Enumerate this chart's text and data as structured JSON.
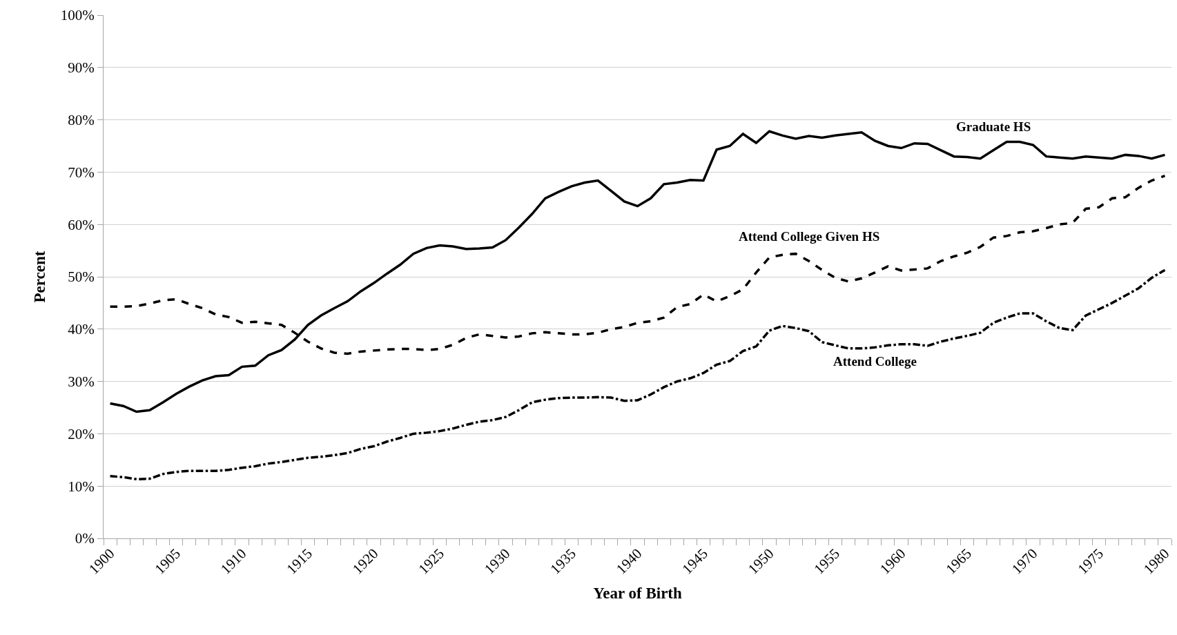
{
  "chart_data": {
    "type": "line",
    "xlabel": "Year of Birth",
    "ylabel": "Percent",
    "categories": [
      "1900",
      null,
      null,
      null,
      null,
      "1905",
      null,
      null,
      null,
      null,
      "1910",
      null,
      null,
      null,
      null,
      "1915",
      null,
      null,
      null,
      null,
      "1920",
      null,
      null,
      null,
      null,
      "1925",
      null,
      null,
      null,
      null,
      "1930",
      null,
      null,
      null,
      null,
      "1935",
      null,
      null,
      null,
      null,
      "1940",
      null,
      null,
      null,
      null,
      "1945",
      null,
      null,
      null,
      null,
      "1950",
      null,
      null,
      null,
      null,
      "1955",
      null,
      null,
      null,
      null,
      "1960",
      null,
      null,
      null,
      null,
      "1965",
      null,
      null,
      null,
      null,
      "1970",
      null,
      null,
      null,
      null,
      "1975",
      null,
      null,
      null,
      null,
      "1980"
    ],
    "series": [
      {
        "name": "Graduate HS",
        "color": "#000000",
        "line_style": "solid",
        "values": [
          25.8,
          25.3,
          24.2,
          24.5,
          26,
          27.6,
          29,
          30.2,
          31,
          31.2,
          32.8,
          33,
          35,
          36,
          38,
          40.8,
          42.6,
          44,
          45.3,
          47.2,
          48.8,
          50.6,
          52.3,
          54.4,
          55.5,
          56,
          55.8,
          55.3,
          55.4,
          55.6,
          57,
          59.4,
          62,
          65,
          66.2,
          67.3,
          68,
          68.4,
          66.4,
          64.4,
          63.5,
          65,
          67.7,
          68,
          68.5,
          68.4,
          74.3,
          75,
          77.3,
          75.6,
          77.8,
          77,
          76.4,
          76.9,
          76.6,
          77,
          77.3,
          77.6,
          76,
          75,
          74.6,
          75.5,
          75.4,
          74.2,
          73,
          72.9,
          72.6,
          74.2,
          75.8,
          75.8,
          75.2,
          73,
          72.8,
          72.6,
          73,
          72.8,
          72.6,
          73.3,
          73.1,
          72.6,
          73.3
        ]
      },
      {
        "name": "Attend College Given HS",
        "color": "#000000",
        "line_style": "dashed",
        "values": [
          44.3,
          44.3,
          44.4,
          44.9,
          45.5,
          45.7,
          44.8,
          44,
          42.8,
          42.3,
          41.2,
          41.4,
          41.1,
          40.8,
          39.3,
          37.6,
          36.3,
          35.5,
          35.3,
          35.7,
          35.9,
          36.1,
          36.2,
          36.2,
          36,
          36.2,
          37,
          38.3,
          39,
          38.7,
          38.4,
          38.6,
          39.2,
          39.4,
          39.2,
          39,
          39,
          39.3,
          40,
          40.4,
          41.2,
          41.5,
          42.2,
          44.2,
          44.8,
          46.6,
          45.3,
          46.3,
          47.6,
          50.8,
          53.7,
          54.2,
          54.4,
          53,
          51.3,
          49.8,
          49.1,
          49.7,
          50.8,
          52,
          51.2,
          51.4,
          51.6,
          53,
          53.9,
          54.6,
          55.7,
          57.5,
          57.8,
          58.5,
          58.7,
          59.3,
          60,
          60.3,
          63,
          63.3,
          65,
          65.2,
          67,
          68.4,
          69.3
        ]
      },
      {
        "name": "Attend College",
        "color": "#000000",
        "line_style": "dashdot",
        "values": [
          11.9,
          11.7,
          11.3,
          11.4,
          12.3,
          12.7,
          12.9,
          12.9,
          12.9,
          13.1,
          13.5,
          13.8,
          14.3,
          14.6,
          15,
          15.4,
          15.6,
          15.9,
          16.3,
          17.1,
          17.6,
          18.5,
          19.2,
          20,
          20.2,
          20.5,
          21,
          21.7,
          22.3,
          22.6,
          23.2,
          24.5,
          26,
          26.5,
          26.8,
          26.9,
          26.9,
          27,
          26.9,
          26.3,
          26.4,
          27.5,
          28.9,
          30,
          30.6,
          31.6,
          33.2,
          33.9,
          35.8,
          36.7,
          39.7,
          40.6,
          40.2,
          39.6,
          37.5,
          36.9,
          36.3,
          36.3,
          36.5,
          36.9,
          37.1,
          37.1,
          36.8,
          37.6,
          38.2,
          38.7,
          39.3,
          41.2,
          42.2,
          43,
          43,
          41.5,
          40.2,
          39.8,
          42.6,
          43.8,
          45,
          46.4,
          47.8,
          49.8,
          51.3
        ]
      }
    ],
    "ylim": [
      0,
      100
    ],
    "yticks": [
      {
        "value": 0,
        "label": "0%"
      },
      {
        "value": 10,
        "label": "10%"
      },
      {
        "value": 20,
        "label": "20%"
      },
      {
        "value": 30,
        "label": "30%"
      },
      {
        "value": 40,
        "label": "40%"
      },
      {
        "value": 50,
        "label": "50%"
      },
      {
        "value": 60,
        "label": "60%"
      },
      {
        "value": 70,
        "label": "70%"
      },
      {
        "value": 80,
        "label": "80%"
      },
      {
        "value": 90,
        "label": "90%"
      },
      {
        "value": 100,
        "label": "100%"
      }
    ],
    "grid": "y",
    "legend": false,
    "marker": "none"
  }
}
